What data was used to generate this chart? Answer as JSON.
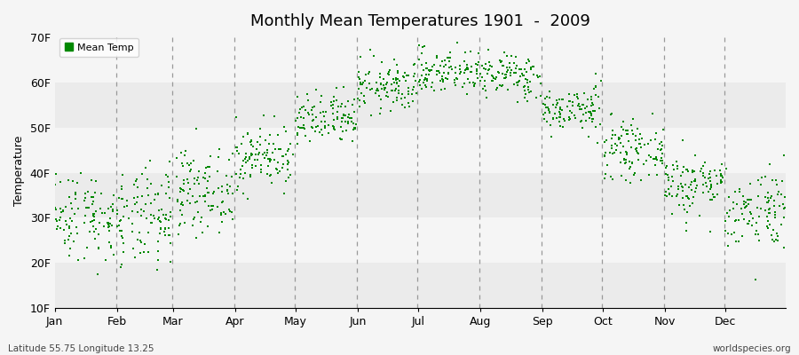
{
  "title": "Monthly Mean Temperatures 1901  -  2009",
  "ylabel": "Temperature",
  "dot_color": "#008800",
  "dot_size": 3,
  "background_color": "#f5f5f5",
  "band_colors": [
    "#ebebeb",
    "#f5f5f5"
  ],
  "ylim": [
    10,
    71
  ],
  "yticks": [
    10,
    20,
    30,
    40,
    50,
    60,
    70
  ],
  "ytick_labels": [
    "10F",
    "20F",
    "30F",
    "40F",
    "50F",
    "60F",
    "70F"
  ],
  "months": [
    "Jan",
    "Feb",
    "Mar",
    "Apr",
    "May",
    "Jun",
    "Jul",
    "Aug",
    "Sep",
    "Oct",
    "Nov",
    "Dec"
  ],
  "month_starts_day": [
    1,
    32,
    60,
    91,
    121,
    152,
    182,
    213,
    244,
    274,
    305,
    335
  ],
  "month_ends_day": [
    31,
    59,
    90,
    120,
    151,
    181,
    212,
    243,
    273,
    304,
    334,
    365
  ],
  "mean_temps_f": [
    30.5,
    29.5,
    36.0,
    43.5,
    51.5,
    59.0,
    62.5,
    61.5,
    54.0,
    45.0,
    37.5,
    32.0
  ],
  "std_devs_f": [
    5.0,
    5.5,
    4.5,
    3.5,
    3.0,
    2.8,
    2.5,
    2.5,
    2.5,
    3.0,
    3.5,
    4.5
  ],
  "n_years": 109,
  "subtitle_lat": "Latitude 55.75 Longitude 13.25",
  "watermark": "worldspecies.org",
  "legend_label": "Mean Temp"
}
